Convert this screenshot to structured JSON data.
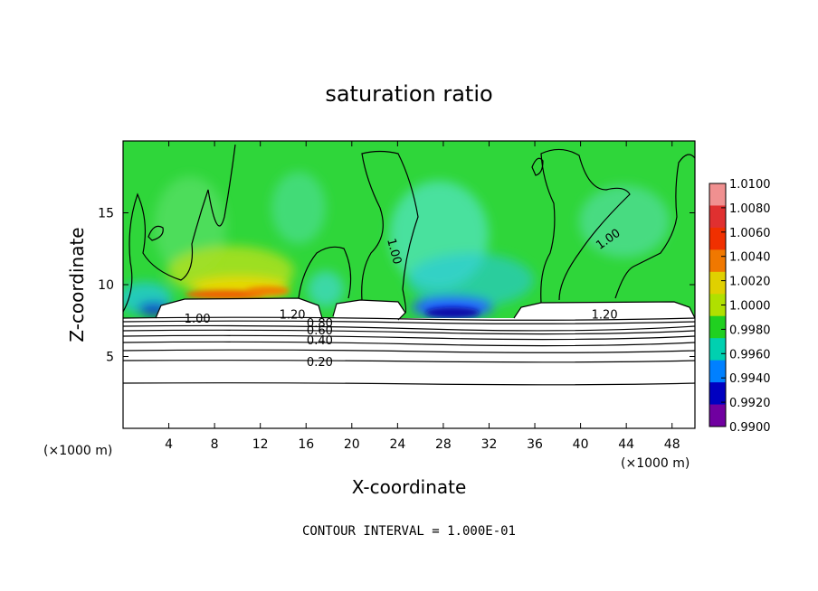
{
  "chart_data": {
    "type": "heatmap",
    "title": "saturation ratio",
    "xlabel": "X-coordinate",
    "ylabel": "Z-coordinate",
    "x_unit_left": "(×1000 m)",
    "x_unit_right": "(×1000 m)",
    "xlim": [
      0,
      50
    ],
    "ylim": [
      0,
      20
    ],
    "x_ticks": [
      4,
      8,
      12,
      16,
      20,
      24,
      28,
      32,
      36,
      40,
      44,
      48
    ],
    "y_ticks": [
      5,
      10,
      15
    ],
    "colorbar": {
      "labels": [
        "1.0100",
        "1.0080",
        "1.0060",
        "1.0040",
        "1.0020",
        "1.0000",
        "0.9980",
        "0.9960",
        "0.9940",
        "0.9920",
        "0.9900"
      ],
      "colors": [
        "#f09090",
        "#e03030",
        "#f03000",
        "#f07800",
        "#e0d000",
        "#b0e000",
        "#20d020",
        "#00d0b0",
        "#0080ff",
        "#0000c0",
        "#7000a0"
      ]
    },
    "contour_labels": [
      {
        "text": "1.00",
        "x": 6.5,
        "y": 7.6
      },
      {
        "text": "1.20",
        "x": 14.8,
        "y": 7.9
      },
      {
        "text": "0.80",
        "x": 17.2,
        "y": 7.3
      },
      {
        "text": "0.60",
        "x": 17.2,
        "y": 6.8
      },
      {
        "text": "0.40",
        "x": 17.2,
        "y": 6.1
      },
      {
        "text": "0.20",
        "x": 17.2,
        "y": 4.6
      },
      {
        "text": "1.00",
        "x": 23.4,
        "y": 12.5
      },
      {
        "text": "1.00",
        "x": 42.6,
        "y": 13.2
      },
      {
        "text": "1.20",
        "x": 42.1,
        "y": 7.9
      }
    ],
    "contour_interval_text": "CONTOUR INTERVAL = 1.000E-01"
  }
}
